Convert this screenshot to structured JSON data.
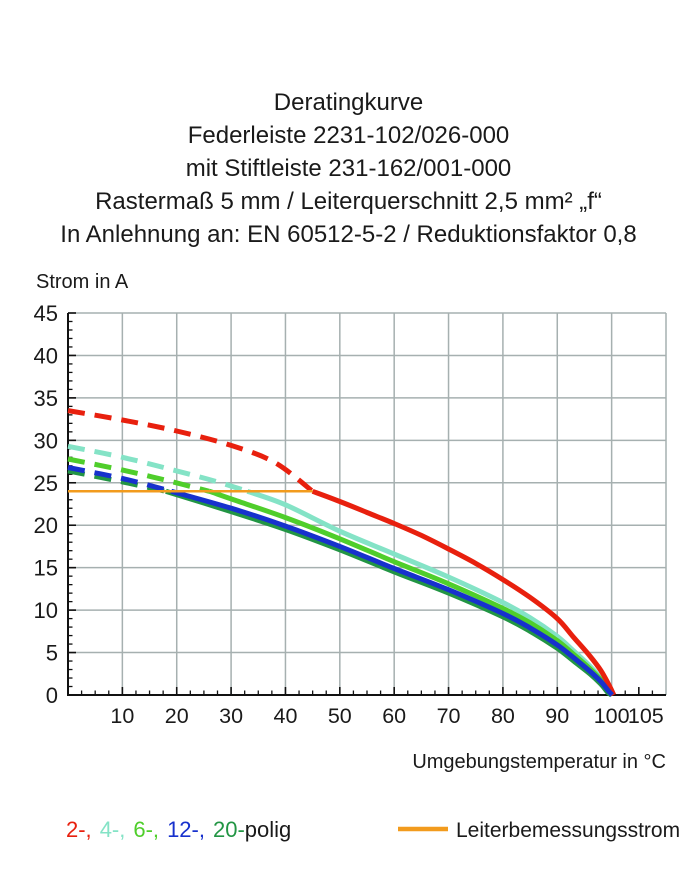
{
  "title": {
    "lines": [
      "Deratingkurve",
      "Federleiste 2231-102/026-000",
      "mit Stiftleiste 231-162/001-000",
      "Rastermaß 5 mm / Leiterquerschnitt 2,5 mm² „f“",
      "In Anlehnung an: EN 60512-5-2 / Reduktionsfaktor 0,8"
    ]
  },
  "chart_data": {
    "type": "line",
    "title": "Deratingkurve",
    "x_axis": {
      "label": "Umgebungstemperatur in °C",
      "min": 0,
      "max": 110,
      "major_tick_step": 10,
      "minor_tick_step": 2.5,
      "tick_labels": [
        10,
        20,
        30,
        40,
        50,
        60,
        70,
        80,
        90,
        100,
        105
      ]
    },
    "y_axis": {
      "label": "Strom in A",
      "min": 0,
      "max": 45,
      "major_tick_step": 5,
      "minor_tick_step": 1,
      "tick_labels": [
        0,
        5,
        10,
        15,
        20,
        25,
        30,
        35,
        40,
        45
      ]
    },
    "grid": {
      "on": true,
      "color": "#a6b0b0",
      "x_step": 10,
      "y_step": 5
    },
    "axis_color": "#111111",
    "series": [
      {
        "name": "2-polig",
        "color": "#e8200e",
        "dash_until": 45,
        "points": [
          [
            0,
            33.5
          ],
          [
            10,
            32.4
          ],
          [
            20,
            31.1
          ],
          [
            30,
            29.4
          ],
          [
            38,
            27.4
          ],
          [
            45,
            24
          ],
          [
            50,
            22.8
          ],
          [
            55,
            21.5
          ],
          [
            60,
            20.2
          ],
          [
            65,
            18.8
          ],
          [
            70,
            17.2
          ],
          [
            75,
            15.5
          ],
          [
            80,
            13.6
          ],
          [
            85,
            11.5
          ],
          [
            90,
            9.0
          ],
          [
            93,
            6.8
          ],
          [
            96,
            4.6
          ],
          [
            98,
            2.9
          ],
          [
            99.5,
            1.2
          ],
          [
            100.4,
            0
          ]
        ]
      },
      {
        "name": "4-polig",
        "color": "#84e3c6",
        "dash_until": 33,
        "points": [
          [
            0,
            29.3
          ],
          [
            10,
            28.0
          ],
          [
            20,
            26.4
          ],
          [
            27,
            25.2
          ],
          [
            33,
            24
          ],
          [
            40,
            22.4
          ],
          [
            50,
            19.3
          ],
          [
            60,
            16.6
          ],
          [
            70,
            13.9
          ],
          [
            80,
            10.9
          ],
          [
            85,
            9.1
          ],
          [
            90,
            6.9
          ],
          [
            93,
            5.2
          ],
          [
            96,
            3.4
          ],
          [
            98,
            2.0
          ],
          [
            99.5,
            0.8
          ],
          [
            100.3,
            0
          ]
        ]
      },
      {
        "name": "6-polig",
        "color": "#4fce2b",
        "dash_until": 26,
        "points": [
          [
            0,
            27.8
          ],
          [
            10,
            26.5
          ],
          [
            18,
            25.3
          ],
          [
            26,
            24
          ],
          [
            30,
            23.1
          ],
          [
            40,
            20.9
          ],
          [
            50,
            18.4
          ],
          [
            60,
            15.7
          ],
          [
            70,
            13.1
          ],
          [
            80,
            10.2
          ],
          [
            85,
            8.5
          ],
          [
            90,
            6.4
          ],
          [
            93,
            4.8
          ],
          [
            96,
            3.1
          ],
          [
            98,
            1.8
          ],
          [
            99.4,
            0.6
          ],
          [
            100.2,
            0
          ]
        ]
      },
      {
        "name": "12-polig",
        "color": "#1731cd",
        "dash_until": 19,
        "points": [
          [
            0,
            26.8
          ],
          [
            10,
            25.5
          ],
          [
            19,
            24
          ],
          [
            30,
            22.0
          ],
          [
            40,
            19.9
          ],
          [
            50,
            17.5
          ],
          [
            60,
            14.9
          ],
          [
            70,
            12.4
          ],
          [
            80,
            9.6
          ],
          [
            85,
            7.9
          ],
          [
            90,
            5.9
          ],
          [
            93,
            4.4
          ],
          [
            96,
            2.8
          ],
          [
            98,
            1.6
          ],
          [
            99.4,
            0.5
          ],
          [
            100.1,
            0
          ]
        ]
      },
      {
        "name": "20-polig",
        "color": "#229544",
        "dash_until": 18,
        "points": [
          [
            0,
            26.4
          ],
          [
            10,
            25.1
          ],
          [
            18,
            24
          ],
          [
            30,
            21.6
          ],
          [
            40,
            19.5
          ],
          [
            50,
            17.1
          ],
          [
            60,
            14.5
          ],
          [
            70,
            12.0
          ],
          [
            80,
            9.2
          ],
          [
            85,
            7.5
          ],
          [
            90,
            5.5
          ],
          [
            93,
            4.0
          ],
          [
            96,
            2.5
          ],
          [
            98,
            1.3
          ],
          [
            99.3,
            0.3
          ],
          [
            100,
            0
          ]
        ]
      }
    ],
    "draw_order": [
      1,
      2,
      0,
      4,
      3
    ],
    "reference_line": {
      "name": "Leiterbemessungsstrom",
      "color": "#f29b1d",
      "value": 24,
      "x_start": 0,
      "x_end": 45
    }
  },
  "legend": {
    "series_parts": [
      {
        "text": "2-,",
        "color": "#e8200e"
      },
      {
        "text": "4-,",
        "color": "#84e3c6"
      },
      {
        "text": "6-,",
        "color": "#4fce2b"
      },
      {
        "text": "12-,",
        "color": "#1731cd"
      },
      {
        "text": "20-",
        "color": "#229544"
      },
      {
        "text": "polig",
        "color": "#1a1a1a"
      }
    ],
    "reference": {
      "label": "Leiterbemessungsstrom",
      "color": "#f29b1d"
    }
  }
}
